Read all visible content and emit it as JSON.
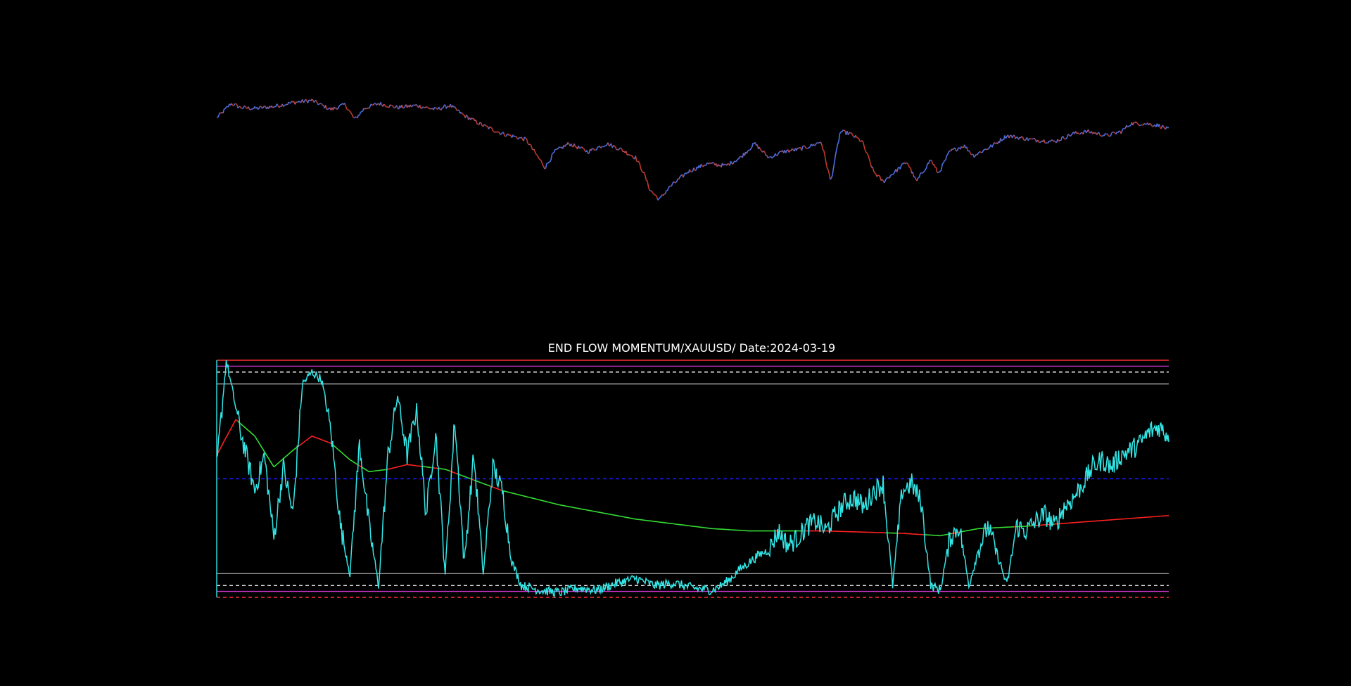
{
  "chart_data": [
    {
      "type": "line",
      "panel": "price",
      "title": "",
      "xlabel": "",
      "ylabel": "",
      "axes_visible": false,
      "grid": false,
      "legend": "none",
      "ylim": [
        0,
        100
      ],
      "series": [
        {
          "color_up": "#4a6fe3",
          "color_down": "#c0392b",
          "knots_x": [
            0,
            0.5,
            1.5,
            2.5,
            4,
            6,
            8,
            10,
            12,
            13.5,
            14.5,
            15.5,
            17,
            19,
            21,
            23,
            24.5,
            26,
            28,
            30,
            32.5,
            34.5,
            35.5,
            37,
            39,
            41,
            42.5,
            44,
            44.8,
            45.5,
            46.5,
            47.5,
            49.5,
            51.5,
            53.5,
            55,
            56.5,
            58,
            59.5,
            61,
            62.5,
            63.5,
            64.5,
            65.5,
            66.5,
            67.8,
            69,
            70,
            72.5,
            73.5,
            75,
            75.8,
            77,
            78.5,
            79.5,
            81.5,
            83,
            85.5,
            88,
            90,
            91.5,
            93.5,
            95,
            96,
            97.5,
            99,
            100
          ],
          "knots_y": [
            87,
            89,
            94,
            92,
            91.5,
            92.5,
            94.5,
            95.5,
            91,
            93.5,
            86,
            91.5,
            94,
            92,
            93,
            91,
            93,
            88,
            83,
            79,
            76,
            62,
            70,
            74,
            70,
            74,
            71,
            67,
            60,
            51,
            46,
            52,
            60,
            64,
            63,
            67,
            74,
            67,
            70,
            71,
            73,
            75,
            55,
            80,
            79,
            75,
            60,
            55,
            65,
            55,
            66,
            59,
            70,
            73,
            68,
            73,
            78,
            76,
            75,
            79,
            80,
            78,
            80,
            84,
            84,
            83,
            81
          ]
        }
      ]
    },
    {
      "type": "line",
      "panel": "oscillator",
      "title": "END FLOW MOMENTUM/XAUUSD/ Date:2024-03-19",
      "xlabel": "",
      "ylabel": "",
      "axes_visible": false,
      "grid": false,
      "legend": "none",
      "ylim": [
        0,
        100
      ],
      "reference_lines": [
        {
          "value": 100,
          "color": "#ff3030",
          "style": "solid"
        },
        {
          "value": 97.5,
          "color": "#cc33cc",
          "style": "solid"
        },
        {
          "value": 95,
          "color": "#ffffff",
          "style": "dashed"
        },
        {
          "value": 90,
          "color": "#a0a0a0",
          "style": "solid"
        },
        {
          "value": 50,
          "color": "#1a1aff",
          "style": "dashed"
        },
        {
          "value": 10,
          "color": "#a0a0a0",
          "style": "solid"
        },
        {
          "value": 5,
          "color": "#ffffff",
          "style": "dashed"
        },
        {
          "value": 2.5,
          "color": "#cc33cc",
          "style": "solid"
        },
        {
          "value": 0,
          "color": "#ff3030",
          "style": "dashed"
        }
      ],
      "series": [
        {
          "role": "oscillator",
          "color": "#33e6e6",
          "knots_x": [
            0,
            1,
            2.5,
            4,
            5,
            6,
            7,
            8,
            9,
            10,
            11,
            12,
            13,
            14,
            15,
            16,
            17,
            18,
            19,
            20,
            21,
            22,
            23,
            24,
            25,
            26,
            27,
            28,
            29,
            30,
            31,
            32,
            34,
            36,
            38,
            40,
            42,
            44,
            46,
            48,
            50,
            52,
            53,
            54,
            55,
            56,
            57,
            58,
            59,
            60,
            61,
            62,
            63,
            64,
            65,
            66,
            67,
            68,
            69,
            70,
            71,
            72,
            73,
            74,
            75,
            76,
            77,
            78,
            79,
            80,
            81,
            82,
            83,
            84,
            85,
            86,
            87,
            88,
            89,
            90,
            91,
            92,
            93,
            94,
            95,
            96,
            97,
            98,
            99,
            100
          ],
          "knots_y": [
            55,
            100,
            70,
            45,
            60,
            25,
            55,
            35,
            90,
            95,
            92,
            70,
            30,
            10,
            65,
            30,
            5,
            60,
            85,
            60,
            80,
            35,
            70,
            10,
            75,
            15,
            60,
            10,
            55,
            45,
            15,
            5,
            3,
            2,
            4,
            3,
            6,
            8,
            5,
            6,
            4,
            3,
            5,
            8,
            12,
            15,
            18,
            20,
            28,
            22,
            25,
            30,
            32,
            28,
            35,
            40,
            42,
            38,
            45,
            48,
            5,
            45,
            48,
            40,
            5,
            3,
            25,
            30,
            5,
            20,
            30,
            18,
            5,
            30,
            28,
            32,
            35,
            30,
            38,
            42,
            48,
            55,
            58,
            55,
            60,
            62,
            65,
            70,
            72,
            68
          ]
        },
        {
          "role": "signal-trend",
          "color_above": "#33dd33",
          "color_below": "#ff2020",
          "knots_x": [
            0,
            2,
            4,
            6,
            8,
            10,
            12,
            14,
            16,
            18,
            20,
            22,
            24,
            26,
            28,
            30,
            33,
            36,
            40,
            44,
            48,
            52,
            56,
            60,
            64,
            68,
            72,
            76,
            80,
            85,
            90,
            95,
            100
          ],
          "knots_y": [
            60,
            75,
            68,
            55,
            62,
            68,
            65,
            58,
            53,
            54,
            56,
            55,
            54,
            51,
            48,
            45,
            42,
            39,
            36,
            33,
            31,
            29,
            28,
            28,
            28,
            27.5,
            27,
            26,
            29,
            30,
            31.5,
            33,
            34.5
          ]
        }
      ]
    }
  ]
}
